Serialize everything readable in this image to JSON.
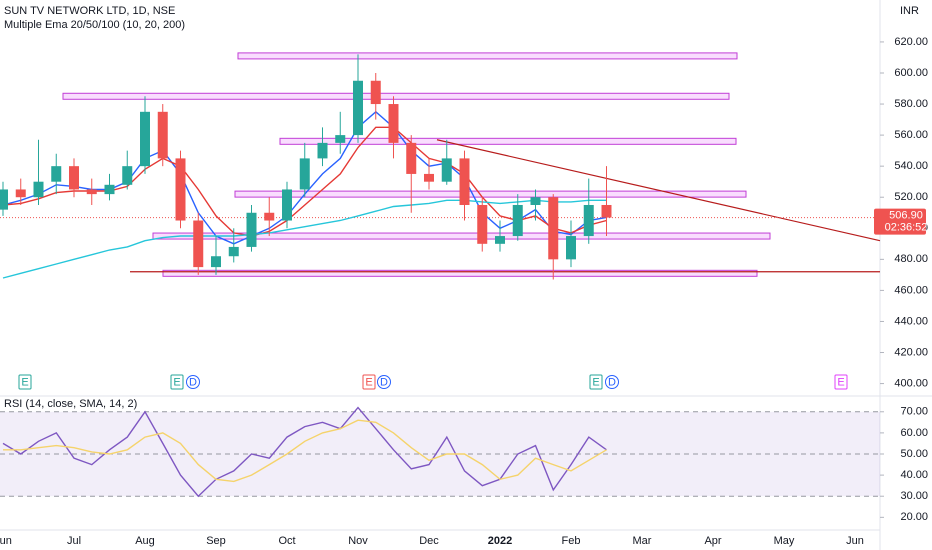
{
  "chart_data": [
    {
      "type": "candlestick",
      "title": "SUN TV NETWORK LTD, 1D, NSE",
      "subtitle": "Multiple Ema 20/50/100 (10, 20, 200)",
      "currency": "INR",
      "categories": [
        "Jun",
        null,
        null,
        null,
        "Jul",
        null,
        null,
        null,
        "Aug",
        null,
        null,
        null,
        "Sep",
        null,
        null,
        null,
        "Oct",
        null,
        null,
        null,
        "Nov",
        null,
        null,
        null,
        "Dec",
        null,
        null,
        null,
        "2022",
        null,
        null,
        null,
        "Feb",
        null,
        null,
        null,
        "Mar",
        null,
        null,
        null,
        "Apr",
        null,
        null,
        null,
        "May",
        null,
        null,
        null,
        "Jun"
      ],
      "candles": [
        [
          512,
          530,
          508,
          525
        ],
        [
          525,
          532,
          515,
          520
        ],
        [
          520,
          557,
          515,
          530
        ],
        [
          530,
          548,
          522,
          540
        ],
        [
          540,
          545,
          520,
          525
        ],
        [
          525,
          532,
          515,
          522
        ],
        [
          522,
          535,
          518,
          528
        ],
        [
          528,
          550,
          525,
          540
        ],
        [
          540,
          585,
          535,
          575
        ],
        [
          575,
          580,
          540,
          545
        ],
        [
          545,
          550,
          500,
          505
        ],
        [
          505,
          510,
          470,
          475
        ],
        [
          475,
          495,
          470,
          482
        ],
        [
          482,
          500,
          478,
          488
        ],
        [
          488,
          515,
          485,
          510
        ],
        [
          510,
          520,
          495,
          505
        ],
        [
          505,
          530,
          500,
          525
        ],
        [
          525,
          555,
          520,
          545
        ],
        [
          545,
          565,
          540,
          555
        ],
        [
          555,
          575,
          548,
          560
        ],
        [
          560,
          612,
          555,
          595
        ],
        [
          595,
          600,
          570,
          580
        ],
        [
          580,
          585,
          545,
          555
        ],
        [
          555,
          560,
          510,
          535
        ],
        [
          535,
          545,
          525,
          530
        ],
        [
          530,
          557,
          528,
          545
        ],
        [
          545,
          550,
          505,
          515
        ],
        [
          515,
          520,
          485,
          490
        ],
        [
          490,
          505,
          485,
          495
        ],
        [
          495,
          522,
          492,
          515
        ],
        [
          515,
          525,
          505,
          520
        ],
        [
          520,
          522,
          467,
          480
        ],
        [
          480,
          505,
          475,
          495
        ],
        [
          495,
          532,
          490,
          515
        ],
        [
          515,
          540,
          495,
          506.9
        ],
        null,
        null,
        null,
        null,
        null,
        null,
        null,
        null,
        null,
        null,
        null,
        null,
        null,
        null
      ],
      "up_color": "#26a69a",
      "down_color": "#ef5350",
      "series": [
        {
          "color": "#2962ff",
          "values": [
            515,
            518,
            522,
            528,
            527,
            525,
            525,
            530,
            545,
            550,
            535,
            510,
            495,
            490,
            495,
            500,
            508,
            522,
            535,
            545,
            565,
            575,
            565,
            550,
            540,
            542,
            532,
            510,
            500,
            505,
            512,
            498,
            496,
            505,
            507,
            null,
            null,
            null,
            null,
            null,
            null,
            null,
            null,
            null,
            null,
            null,
            null,
            null,
            null
          ]
        },
        {
          "color": "#e53935",
          "values": [
            515,
            516,
            519,
            523,
            524,
            524,
            524,
            527,
            538,
            545,
            540,
            525,
            508,
            497,
            495,
            498,
            505,
            515,
            525,
            535,
            552,
            565,
            565,
            555,
            545,
            542,
            535,
            520,
            508,
            505,
            508,
            500,
            497,
            502,
            505,
            null,
            null,
            null,
            null,
            null,
            null,
            null,
            null,
            null,
            null,
            null,
            null,
            null,
            null
          ]
        },
        {
          "color": "#26c6da",
          "values": [
            468,
            471,
            474,
            477,
            480,
            483,
            486,
            488,
            492,
            494,
            495,
            495,
            495,
            495,
            496,
            497,
            499,
            501,
            503,
            505,
            508,
            511,
            514,
            515,
            516,
            518,
            518,
            517,
            516,
            517,
            518,
            517,
            517,
            518,
            518,
            null,
            null,
            null,
            null,
            null,
            null,
            null,
            null,
            null,
            null,
            null,
            null,
            null,
            null
          ]
        }
      ],
      "levels": [
        611,
        585,
        556,
        522,
        495,
        471
      ],
      "support_line": 472,
      "trendline": [
        557,
        492
      ],
      "last_price": {
        "value": 506.9,
        "label": "506.90"
      },
      "countdown": "02:36:52",
      "events": [
        "E",
        "E",
        "D",
        "E",
        "D",
        "E",
        "D",
        "E"
      ],
      "ylim": [
        392,
        647
      ],
      "yticks": [
        {
          "value": 400,
          "label": "400.00"
        },
        {
          "value": 420,
          "label": "420.00"
        },
        {
          "value": 440,
          "label": "440.00"
        },
        {
          "value": 460,
          "label": "460.00"
        },
        {
          "value": 480,
          "label": "480.00"
        },
        {
          "value": 500,
          "label": "500.00"
        },
        {
          "value": 520,
          "label": "520.00"
        },
        {
          "value": 540,
          "label": "540.00"
        },
        {
          "value": 560,
          "label": "560.00"
        },
        {
          "value": 580,
          "label": "580.00"
        },
        {
          "value": 600,
          "label": "600.00"
        },
        {
          "value": 620,
          "label": "620.00"
        }
      ]
    },
    {
      "type": "line",
      "title": "RSI (14, close, SMA, 14, 2)",
      "series": [
        {
          "color": "#7e57c2",
          "values": [
            55,
            50,
            56,
            60,
            48,
            45,
            52,
            58,
            70,
            55,
            40,
            30,
            38,
            42,
            50,
            48,
            58,
            63,
            65,
            62,
            72,
            62,
            52,
            43,
            45,
            58,
            42,
            35,
            38,
            50,
            54,
            33,
            45,
            58,
            52,
            null,
            null,
            null,
            null,
            null,
            null,
            null,
            null,
            null,
            null,
            null,
            null,
            null,
            null
          ]
        },
        {
          "color": "#f5d36b",
          "values": [
            52,
            52,
            53,
            54,
            53,
            51,
            50,
            52,
            58,
            60,
            55,
            45,
            38,
            37,
            40,
            45,
            50,
            56,
            60,
            62,
            66,
            65,
            60,
            53,
            47,
            50,
            50,
            45,
            38,
            40,
            48,
            45,
            42,
            47,
            52,
            null,
            null,
            null,
            null,
            null,
            null,
            null,
            null,
            null,
            null,
            null,
            null,
            null,
            null
          ]
        }
      ],
      "bands": [
        30,
        50,
        70
      ],
      "ylim": [
        14,
        77
      ],
      "yticks": [
        {
          "value": 20,
          "label": "20.00"
        },
        {
          "value": 30,
          "label": "30.00"
        },
        {
          "value": 40,
          "label": "40.00"
        },
        {
          "value": 50,
          "label": "50.00"
        },
        {
          "value": 60,
          "label": "60.00"
        },
        {
          "value": 70,
          "label": "70.00"
        }
      ]
    }
  ]
}
